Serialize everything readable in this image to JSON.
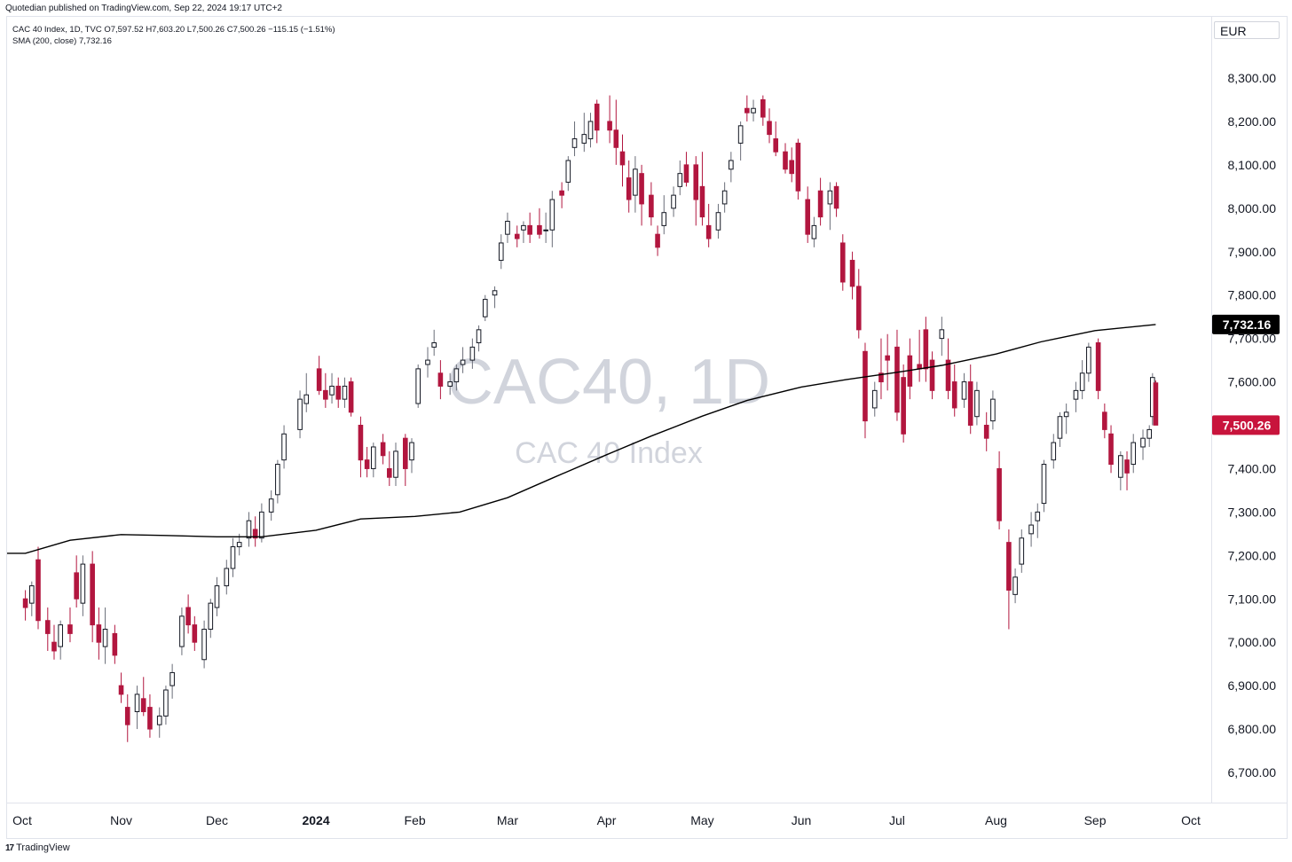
{
  "header": {
    "published_by": "Quotedian published on TradingView.com, Sep 22, 2024 19:17 UTC+2"
  },
  "legend": {
    "symbol_line": "CAC 40 Index, 1D, TVC  O7,597.52  H7,603.20  L7,500.26  C7,500.26  −115.15 (−1.51%)",
    "sma_line": "SMA (200, close)  7,732.16"
  },
  "currency_label": "EUR",
  "watermark": {
    "main": "CAC40, 1D",
    "sub": "CAC 40 Index"
  },
  "price_tags": {
    "sma_value": "7,732.16",
    "last_close": "7,500.26"
  },
  "footer": {
    "brand": "TradingView"
  },
  "colors": {
    "up_fill": "#ffffff",
    "up_border": "#131722",
    "down_fill": "#b2163f",
    "down_border": "#b2163f",
    "sma_line": "#000000",
    "last_tag": "#c8143c",
    "sma_tag": "#000000",
    "watermark": "#d1d4dc",
    "grid": "#ffffff"
  },
  "chart_data": {
    "type": "candlestick",
    "title": "CAC 40 Index",
    "timeframe": "1D",
    "currency": "EUR",
    "ylim": [
      6650,
      8380
    ],
    "y_ticks": [
      "6,700.00",
      "6,800.00",
      "6,900.00",
      "7,000.00",
      "7,100.00",
      "7,200.00",
      "7,300.00",
      "7,400.00",
      "7,500.00",
      "7,600.00",
      "7,700.00",
      "7,800.00",
      "7,900.00",
      "8,000.00",
      "8,100.00",
      "8,200.00",
      "8,300.00"
    ],
    "y_tick_values": [
      6700,
      6800,
      6900,
      7000,
      7100,
      7200,
      7300,
      7400,
      7500,
      7600,
      7700,
      7800,
      7900,
      8000,
      8100,
      8200,
      8300
    ],
    "x_ticks": [
      {
        "label": "Oct",
        "date": "2023-10-01"
      },
      {
        "label": "Nov",
        "date": "2023-11-01"
      },
      {
        "label": "Dec",
        "date": "2023-12-01"
      },
      {
        "label": "2024",
        "date": "2024-01-01"
      },
      {
        "label": "Feb",
        "date": "2024-02-01"
      },
      {
        "label": "Mar",
        "date": "2024-03-01"
      },
      {
        "label": "Apr",
        "date": "2024-04-01"
      },
      {
        "label": "May",
        "date": "2024-05-01"
      },
      {
        "label": "Jun",
        "date": "2024-06-01"
      },
      {
        "label": "Jul",
        "date": "2024-07-01"
      },
      {
        "label": "Aug",
        "date": "2024-08-01"
      },
      {
        "label": "Sep",
        "date": "2024-09-01"
      },
      {
        "label": "Oct",
        "date": "2024-10-01"
      }
    ],
    "sma_period": 200,
    "sma_last": 7732.16,
    "last_close": 7500.26,
    "ohlc_columns": [
      "date",
      "open",
      "high",
      "low",
      "close"
    ],
    "candles": [
      [
        "2023-10-02",
        7100,
        7120,
        7050,
        7080
      ],
      [
        "2023-10-04",
        7090,
        7140,
        7060,
        7130
      ],
      [
        "2023-10-06",
        7190,
        7220,
        7030,
        7050
      ],
      [
        "2023-10-09",
        7050,
        7080,
        6980,
        7020
      ],
      [
        "2023-10-11",
        7000,
        7040,
        6960,
        6980
      ],
      [
        "2023-10-13",
        6990,
        7050,
        6960,
        7040
      ],
      [
        "2023-10-16",
        7040,
        7080,
        7000,
        7020
      ],
      [
        "2023-10-18",
        7160,
        7200,
        7080,
        7100
      ],
      [
        "2023-10-20",
        7090,
        7200,
        7060,
        7180
      ],
      [
        "2023-10-23",
        7180,
        7210,
        7000,
        7040
      ],
      [
        "2023-10-25",
        7040,
        7080,
        6960,
        7000
      ],
      [
        "2023-10-27",
        6990,
        7080,
        6950,
        7030
      ],
      [
        "2023-10-30",
        7020,
        7040,
        6950,
        6970
      ],
      [
        "2023-11-01",
        6900,
        6930,
        6860,
        6880
      ],
      [
        "2023-11-03",
        6850,
        6880,
        6770,
        6810
      ],
      [
        "2023-11-06",
        6840,
        6900,
        6800,
        6880
      ],
      [
        "2023-11-08",
        6870,
        6920,
        6830,
        6840
      ],
      [
        "2023-11-10",
        6850,
        6880,
        6780,
        6800
      ],
      [
        "2023-11-13",
        6810,
        6850,
        6780,
        6830
      ],
      [
        "2023-11-15",
        6830,
        6900,
        6810,
        6890
      ],
      [
        "2023-11-17",
        6900,
        6950,
        6870,
        6930
      ],
      [
        "2023-11-20",
        6990,
        7080,
        6970,
        7060
      ],
      [
        "2023-11-22",
        7080,
        7110,
        7020,
        7040
      ],
      [
        "2023-11-24",
        7040,
        7060,
        6980,
        7000
      ],
      [
        "2023-11-27",
        6960,
        7050,
        6940,
        7030
      ],
      [
        "2023-11-29",
        7030,
        7100,
        7010,
        7090
      ],
      [
        "2023-12-01",
        7080,
        7150,
        7060,
        7130
      ],
      [
        "2023-12-04",
        7130,
        7190,
        7110,
        7170
      ],
      [
        "2023-12-06",
        7170,
        7240,
        7150,
        7220
      ],
      [
        "2023-12-08",
        7220,
        7250,
        7200,
        7230
      ],
      [
        "2023-12-11",
        7240,
        7300,
        7220,
        7280
      ],
      [
        "2023-12-13",
        7260,
        7290,
        7220,
        7240
      ],
      [
        "2023-12-15",
        7240,
        7320,
        7230,
        7300
      ],
      [
        "2023-12-18",
        7300,
        7350,
        7280,
        7330
      ],
      [
        "2023-12-20",
        7340,
        7420,
        7320,
        7410
      ],
      [
        "2023-12-22",
        7420,
        7500,
        7400,
        7480
      ],
      [
        "2023-12-27",
        7490,
        7580,
        7470,
        7560
      ],
      [
        "2023-12-29",
        7550,
        7620,
        7530,
        7570
      ],
      [
        "2024-01-02",
        7630,
        7660,
        7570,
        7580
      ],
      [
        "2024-01-04",
        7580,
        7620,
        7540,
        7560
      ],
      [
        "2024-01-06",
        7570,
        7620,
        7550,
        7590
      ],
      [
        "2024-01-08",
        7590,
        7610,
        7540,
        7560
      ],
      [
        "2024-01-10",
        7560,
        7610,
        7540,
        7590
      ],
      [
        "2024-01-12",
        7600,
        7610,
        7520,
        7530
      ],
      [
        "2024-01-15",
        7500,
        7520,
        7380,
        7420
      ],
      [
        "2024-01-17",
        7420,
        7450,
        7380,
        7400
      ],
      [
        "2024-01-19",
        7400,
        7460,
        7380,
        7450
      ],
      [
        "2024-01-22",
        7460,
        7480,
        7410,
        7430
      ],
      [
        "2024-01-24",
        7400,
        7440,
        7360,
        7380
      ],
      [
        "2024-01-26",
        7380,
        7460,
        7360,
        7440
      ],
      [
        "2024-01-29",
        7470,
        7480,
        7360,
        7400
      ],
      [
        "2024-01-31",
        7420,
        7470,
        7390,
        7460
      ],
      [
        "2024-02-02",
        7550,
        7640,
        7540,
        7630
      ],
      [
        "2024-02-05",
        7640,
        7680,
        7610,
        7650
      ],
      [
        "2024-02-07",
        7680,
        7720,
        7660,
        7690
      ],
      [
        "2024-02-09",
        7620,
        7650,
        7560,
        7590
      ],
      [
        "2024-02-12",
        7590,
        7620,
        7570,
        7600
      ],
      [
        "2024-02-14",
        7600,
        7640,
        7580,
        7630
      ],
      [
        "2024-02-16",
        7640,
        7680,
        7620,
        7650
      ],
      [
        "2024-02-19",
        7650,
        7700,
        7630,
        7680
      ],
      [
        "2024-02-21",
        7690,
        7730,
        7670,
        7720
      ],
      [
        "2024-02-23",
        7750,
        7800,
        7740,
        7790
      ],
      [
        "2024-02-26",
        7800,
        7820,
        7770,
        7810
      ],
      [
        "2024-02-28",
        7880,
        7940,
        7860,
        7920
      ],
      [
        "2024-03-01",
        7940,
        7990,
        7920,
        7970
      ],
      [
        "2024-03-04",
        7940,
        7960,
        7910,
        7930
      ],
      [
        "2024-03-06",
        7950,
        7970,
        7920,
        7960
      ],
      [
        "2024-03-08",
        7960,
        7990,
        7920,
        7940
      ],
      [
        "2024-03-11",
        7960,
        8000,
        7930,
        7940
      ],
      [
        "2024-03-13",
        7950,
        7990,
        7920,
        7950
      ],
      [
        "2024-03-15",
        7950,
        8040,
        7910,
        8020
      ],
      [
        "2024-03-18",
        8040,
        8060,
        8000,
        8030
      ],
      [
        "2024-03-20",
        8060,
        8120,
        8040,
        8110
      ],
      [
        "2024-03-22",
        8140,
        8200,
        8120,
        8160
      ],
      [
        "2024-03-25",
        8150,
        8220,
        8130,
        8170
      ],
      [
        "2024-03-27",
        8160,
        8220,
        8140,
        8200
      ],
      [
        "2024-03-29",
        8240,
        8250,
        8150,
        8180
      ],
      [
        "2024-04-02",
        8200,
        8260,
        8150,
        8180
      ],
      [
        "2024-04-04",
        8180,
        8250,
        8100,
        8140
      ],
      [
        "2024-04-06",
        8130,
        8170,
        8050,
        8100
      ],
      [
        "2024-04-08",
        8070,
        8110,
        7990,
        8020
      ],
      [
        "2024-04-10",
        8030,
        8120,
        7990,
        8090
      ],
      [
        "2024-04-12",
        8080,
        8100,
        7960,
        8010
      ],
      [
        "2024-04-15",
        8030,
        8060,
        7960,
        7980
      ],
      [
        "2024-04-17",
        7940,
        7960,
        7890,
        7910
      ],
      [
        "2024-04-19",
        7960,
        8030,
        7940,
        7990
      ],
      [
        "2024-04-22",
        8000,
        8050,
        7980,
        8030
      ],
      [
        "2024-04-24",
        8050,
        8110,
        8030,
        8080
      ],
      [
        "2024-04-26",
        8100,
        8130,
        8050,
        8060
      ],
      [
        "2024-04-29",
        8100,
        8120,
        7960,
        8020
      ],
      [
        "2024-05-01",
        8050,
        8130,
        7960,
        7980
      ],
      [
        "2024-05-03",
        7960,
        8010,
        7910,
        7930
      ],
      [
        "2024-05-06",
        7950,
        8010,
        7930,
        7990
      ],
      [
        "2024-05-08",
        8010,
        8060,
        7990,
        8040
      ],
      [
        "2024-05-10",
        8090,
        8130,
        8060,
        8110
      ],
      [
        "2024-05-13",
        8150,
        8200,
        8110,
        8190
      ],
      [
        "2024-05-15",
        8230,
        8260,
        8200,
        8220
      ],
      [
        "2024-05-17",
        8220,
        8250,
        8200,
        8230
      ],
      [
        "2024-05-20",
        8250,
        8260,
        8190,
        8210
      ],
      [
        "2024-05-22",
        8200,
        8230,
        8150,
        8170
      ],
      [
        "2024-05-24",
        8160,
        8200,
        8120,
        8130
      ],
      [
        "2024-05-27",
        8130,
        8150,
        8080,
        8090
      ],
      [
        "2024-05-29",
        8110,
        8140,
        8060,
        8080
      ],
      [
        "2024-05-31",
        8150,
        8160,
        8020,
        8040
      ],
      [
        "2024-06-03",
        8020,
        8050,
        7920,
        7940
      ],
      [
        "2024-06-05",
        7930,
        7980,
        7910,
        7960
      ],
      [
        "2024-06-07",
        8040,
        8070,
        7960,
        7980
      ],
      [
        "2024-06-10",
        8010,
        8060,
        7950,
        8040
      ],
      [
        "2024-06-12",
        8050,
        8060,
        7980,
        8000
      ],
      [
        "2024-06-14",
        7920,
        7940,
        7810,
        7830
      ],
      [
        "2024-06-17",
        7880,
        7900,
        7790,
        7820
      ],
      [
        "2024-06-19",
        7820,
        7860,
        7700,
        7720
      ],
      [
        "2024-06-21",
        7670,
        7690,
        7470,
        7510
      ],
      [
        "2024-06-24",
        7540,
        7600,
        7520,
        7580
      ],
      [
        "2024-06-26",
        7620,
        7700,
        7560,
        7600
      ],
      [
        "2024-06-28",
        7660,
        7710,
        7580,
        7650
      ],
      [
        "2024-07-01",
        7680,
        7720,
        7510,
        7530
      ],
      [
        "2024-07-03",
        7610,
        7640,
        7460,
        7480
      ],
      [
        "2024-07-05",
        7660,
        7700,
        7560,
        7590
      ],
      [
        "2024-07-08",
        7640,
        7720,
        7600,
        7630
      ],
      [
        "2024-07-10",
        7720,
        7750,
        7600,
        7630
      ],
      [
        "2024-07-12",
        7650,
        7670,
        7560,
        7580
      ],
      [
        "2024-07-15",
        7700,
        7750,
        7660,
        7720
      ],
      [
        "2024-07-17",
        7650,
        7700,
        7560,
        7580
      ],
      [
        "2024-07-19",
        7600,
        7640,
        7520,
        7540
      ],
      [
        "2024-07-22",
        7560,
        7620,
        7540,
        7600
      ],
      [
        "2024-07-24",
        7600,
        7640,
        7480,
        7500
      ],
      [
        "2024-07-26",
        7520,
        7600,
        7500,
        7580
      ],
      [
        "2024-07-29",
        7500,
        7530,
        7440,
        7470
      ],
      [
        "2024-07-31",
        7510,
        7580,
        7490,
        7560
      ],
      [
        "2024-08-02",
        7400,
        7440,
        7260,
        7280
      ],
      [
        "2024-08-05",
        7230,
        7260,
        7030,
        7120
      ],
      [
        "2024-08-07",
        7110,
        7170,
        7090,
        7150
      ],
      [
        "2024-08-09",
        7180,
        7260,
        7160,
        7240
      ],
      [
        "2024-08-12",
        7250,
        7300,
        7220,
        7270
      ],
      [
        "2024-08-14",
        7280,
        7320,
        7240,
        7300
      ],
      [
        "2024-08-16",
        7320,
        7420,
        7300,
        7410
      ],
      [
        "2024-08-19",
        7420,
        7480,
        7400,
        7460
      ],
      [
        "2024-08-21",
        7470,
        7530,
        7450,
        7520
      ],
      [
        "2024-08-23",
        7520,
        7550,
        7480,
        7530
      ],
      [
        "2024-08-26",
        7560,
        7600,
        7530,
        7580
      ],
      [
        "2024-08-28",
        7580,
        7650,
        7560,
        7620
      ],
      [
        "2024-08-30",
        7620,
        7690,
        7600,
        7680
      ],
      [
        "2024-09-02",
        7690,
        7700,
        7560,
        7580
      ],
      [
        "2024-09-04",
        7530,
        7550,
        7470,
        7490
      ],
      [
        "2024-09-06",
        7480,
        7500,
        7390,
        7410
      ],
      [
        "2024-09-09",
        7380,
        7440,
        7350,
        7430
      ],
      [
        "2024-09-11",
        7420,
        7440,
        7350,
        7390
      ],
      [
        "2024-09-13",
        7410,
        7480,
        7390,
        7460
      ],
      [
        "2024-09-16",
        7450,
        7490,
        7420,
        7470
      ],
      [
        "2024-09-18",
        7470,
        7500,
        7450,
        7490
      ],
      [
        "2024-09-19",
        7520,
        7620,
        7500,
        7610
      ],
      [
        "2024-09-20",
        7597.52,
        7603.2,
        7500.26,
        7500.26
      ]
    ],
    "sma": [
      [
        "2023-10-02",
        7205
      ],
      [
        "2023-10-16",
        7235
      ],
      [
        "2023-11-01",
        7248
      ],
      [
        "2023-11-15",
        7246
      ],
      [
        "2023-12-01",
        7243
      ],
      [
        "2023-12-15",
        7243
      ],
      [
        "2024-01-01",
        7258
      ],
      [
        "2024-01-15",
        7284
      ],
      [
        "2024-02-01",
        7290
      ],
      [
        "2024-02-15",
        7300
      ],
      [
        "2024-03-01",
        7333
      ],
      [
        "2024-03-15",
        7378
      ],
      [
        "2024-04-01",
        7432
      ],
      [
        "2024-04-15",
        7475
      ],
      [
        "2024-05-01",
        7521
      ],
      [
        "2024-05-15",
        7557
      ],
      [
        "2024-06-01",
        7588
      ],
      [
        "2024-06-15",
        7605
      ],
      [
        "2024-07-01",
        7622
      ],
      [
        "2024-07-15",
        7638
      ],
      [
        "2024-08-01",
        7664
      ],
      [
        "2024-08-15",
        7692
      ],
      [
        "2024-09-01",
        7718
      ],
      [
        "2024-09-20",
        7732.16
      ]
    ]
  }
}
